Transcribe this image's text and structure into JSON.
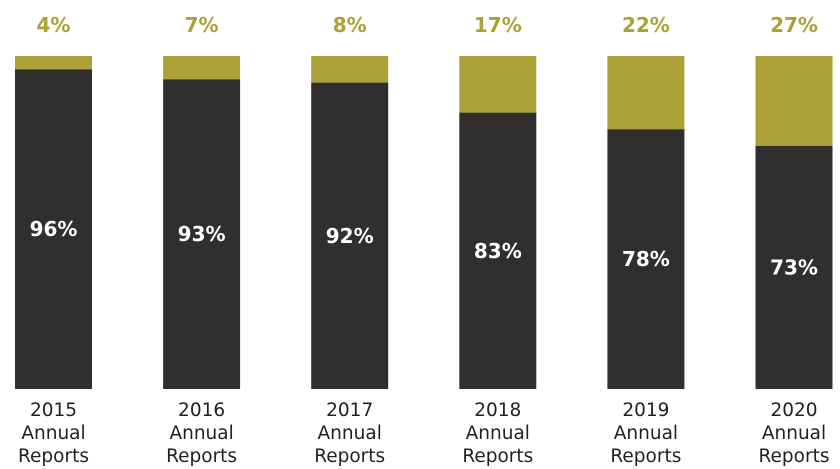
{
  "chart_data": {
    "type": "bar",
    "stacked": true,
    "normalized": true,
    "ylim": [
      0,
      100
    ],
    "grid": false,
    "legend": "none",
    "categories": [
      [
        "2015",
        "Annual",
        "Reports"
      ],
      [
        "2016",
        "Annual",
        "Reports"
      ],
      [
        "2017",
        "Annual",
        "Reports"
      ],
      [
        "2018",
        "Annual",
        "Reports"
      ],
      [
        "2019",
        "Annual",
        "Reports"
      ],
      [
        "2020",
        "Annual",
        "Reports"
      ]
    ],
    "series": [
      {
        "values": [
          96,
          93,
          92,
          83,
          78,
          73
        ],
        "labels": [
          "96%",
          "93%",
          "92%",
          "83%",
          "78%",
          "73%"
        ],
        "color": "#312e2e",
        "label_color": "#ffffff"
      },
      {
        "values": [
          4,
          7,
          8,
          17,
          22,
          27
        ],
        "labels": [
          "4%",
          "7%",
          "8%",
          "17%",
          "22%",
          "27%"
        ],
        "color": "#aba137",
        "label_color": "#aba137"
      }
    ]
  }
}
